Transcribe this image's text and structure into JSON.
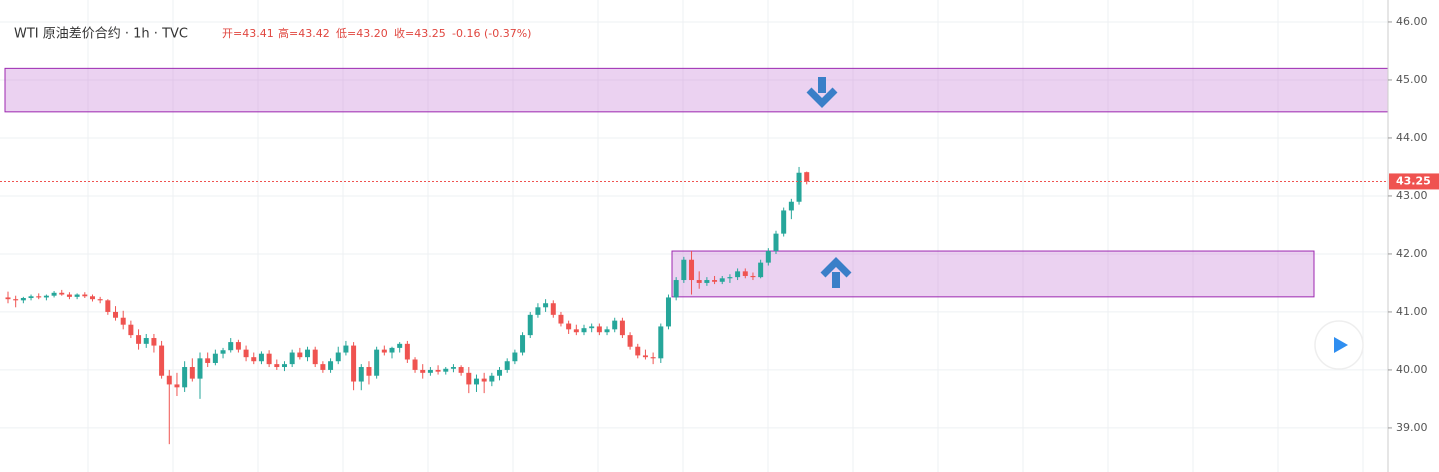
{
  "chart_data": {
    "type": "candlestick",
    "header": {
      "symbol": "WTI 原油差价合约 · 1h · TVC",
      "stats": [
        "开=43.41",
        "高=43.42",
        "低=43.20",
        "收=43.25",
        "-0.16 (-0.37%)"
      ]
    },
    "ylim": [
      38.24,
      46.12
    ],
    "yticks": [
      {
        "value": 39,
        "label": "39.00"
      },
      {
        "value": 40,
        "label": "40.00"
      },
      {
        "value": 41,
        "label": "41.00"
      },
      {
        "value": 42,
        "label": "42.00"
      },
      {
        "value": 43,
        "label": "43.00"
      },
      {
        "value": 44,
        "label": "44.00"
      },
      {
        "value": 45,
        "label": "45.00"
      },
      {
        "value": 46,
        "label": "46.00"
      }
    ],
    "grid": true,
    "up_color": "#26a69a",
    "down_color": "#ef5350",
    "last_price": {
      "value": 43.25,
      "label": "43.25"
    },
    "zones": [
      {
        "top": 45.2,
        "bottom": 44.45
      },
      {
        "top": 42.05,
        "bottom": 41.26
      }
    ],
    "zone_color": "#c77dd6",
    "ohlc": [
      [
        41.25,
        41.35,
        41.15,
        41.22
      ],
      [
        41.22,
        41.28,
        41.08,
        41.2
      ],
      [
        41.2,
        41.26,
        41.15,
        41.24
      ],
      [
        41.24,
        41.3,
        41.2,
        41.27
      ],
      [
        41.27,
        41.32,
        41.22,
        41.25
      ],
      [
        41.25,
        41.3,
        41.2,
        41.28
      ],
      [
        41.28,
        41.36,
        41.25,
        41.33
      ],
      [
        41.33,
        41.38,
        41.28,
        41.3
      ],
      [
        41.3,
        41.34,
        41.22,
        41.26
      ],
      [
        41.26,
        41.32,
        41.22,
        41.3
      ],
      [
        41.3,
        41.34,
        41.24,
        41.27
      ],
      [
        41.27,
        41.3,
        41.18,
        41.22
      ],
      [
        41.22,
        41.26,
        41.15,
        41.2
      ],
      [
        41.2,
        41.22,
        40.95,
        41.0
      ],
      [
        41.0,
        41.1,
        40.85,
        40.9
      ],
      [
        40.9,
        41.02,
        40.7,
        40.78
      ],
      [
        40.78,
        40.85,
        40.55,
        40.6
      ],
      [
        40.6,
        40.7,
        40.35,
        40.45
      ],
      [
        40.45,
        40.62,
        40.38,
        40.55
      ],
      [
        40.55,
        40.62,
        40.3,
        40.42
      ],
      [
        40.42,
        40.5,
        39.85,
        39.9
      ],
      [
        39.9,
        40.0,
        38.72,
        39.75
      ],
      [
        39.75,
        39.95,
        39.55,
        39.7
      ],
      [
        39.7,
        40.15,
        39.62,
        40.05
      ],
      [
        40.05,
        40.2,
        39.8,
        39.85
      ],
      [
        39.85,
        40.3,
        39.5,
        40.2
      ],
      [
        40.2,
        40.3,
        40.05,
        40.12
      ],
      [
        40.12,
        40.35,
        40.08,
        40.28
      ],
      [
        40.28,
        40.38,
        40.2,
        40.34
      ],
      [
        40.34,
        40.55,
        40.3,
        40.48
      ],
      [
        40.48,
        40.52,
        40.3,
        40.35
      ],
      [
        40.35,
        40.42,
        40.15,
        40.22
      ],
      [
        40.22,
        40.3,
        40.1,
        40.15
      ],
      [
        40.15,
        40.32,
        40.1,
        40.28
      ],
      [
        40.28,
        40.34,
        40.05,
        40.1
      ],
      [
        40.1,
        40.18,
        40.0,
        40.05
      ],
      [
        40.05,
        40.15,
        39.98,
        40.1
      ],
      [
        40.1,
        40.35,
        40.05,
        40.3
      ],
      [
        40.3,
        40.38,
        40.18,
        40.22
      ],
      [
        40.22,
        40.4,
        40.15,
        40.35
      ],
      [
        40.35,
        40.4,
        40.05,
        40.1
      ],
      [
        40.1,
        40.15,
        39.95,
        40.0
      ],
      [
        40.0,
        40.2,
        39.95,
        40.15
      ],
      [
        40.15,
        40.4,
        40.1,
        40.3
      ],
      [
        40.3,
        40.5,
        40.25,
        40.42
      ],
      [
        40.42,
        40.48,
        39.65,
        39.8
      ],
      [
        39.8,
        40.1,
        39.65,
        40.05
      ],
      [
        40.05,
        40.15,
        39.75,
        39.9
      ],
      [
        39.9,
        40.4,
        39.85,
        40.35
      ],
      [
        40.35,
        40.42,
        40.25,
        40.3
      ],
      [
        40.3,
        40.4,
        40.2,
        40.38
      ],
      [
        40.38,
        40.48,
        40.3,
        40.45
      ],
      [
        40.45,
        40.5,
        40.12,
        40.18
      ],
      [
        40.18,
        40.22,
        39.95,
        40.0
      ],
      [
        40.0,
        40.1,
        39.85,
        39.95
      ],
      [
        39.95,
        40.05,
        39.9,
        40.0
      ],
      [
        40.0,
        40.08,
        39.92,
        39.97
      ],
      [
        39.97,
        40.05,
        39.92,
        40.02
      ],
      [
        40.02,
        40.1,
        39.96,
        40.05
      ],
      [
        40.05,
        40.08,
        39.9,
        39.95
      ],
      [
        39.95,
        40.05,
        39.6,
        39.75
      ],
      [
        39.75,
        39.92,
        39.62,
        39.85
      ],
      [
        39.85,
        39.95,
        39.6,
        39.8
      ],
      [
        39.8,
        39.95,
        39.72,
        39.9
      ],
      [
        39.9,
        40.05,
        39.82,
        40.0
      ],
      [
        40.0,
        40.2,
        39.95,
        40.15
      ],
      [
        40.15,
        40.35,
        40.1,
        40.3
      ],
      [
        40.3,
        40.65,
        40.25,
        40.6
      ],
      [
        40.6,
        41.0,
        40.55,
        40.95
      ],
      [
        40.95,
        41.15,
        40.9,
        41.08
      ],
      [
        41.08,
        41.22,
        41.0,
        41.15
      ],
      [
        41.15,
        41.2,
        40.9,
        40.95
      ],
      [
        40.95,
        41.0,
        40.75,
        40.8
      ],
      [
        40.8,
        40.85,
        40.62,
        40.7
      ],
      [
        40.7,
        40.78,
        40.6,
        40.65
      ],
      [
        40.65,
        40.78,
        40.6,
        40.72
      ],
      [
        40.72,
        40.8,
        40.65,
        40.75
      ],
      [
        40.75,
        40.8,
        40.6,
        40.65
      ],
      [
        40.65,
        40.75,
        40.6,
        40.7
      ],
      [
        40.7,
        40.9,
        40.65,
        40.85
      ],
      [
        40.85,
        40.9,
        40.55,
        40.6
      ],
      [
        40.6,
        40.65,
        40.35,
        40.4
      ],
      [
        40.4,
        40.45,
        40.2,
        40.25
      ],
      [
        40.25,
        40.35,
        40.18,
        40.22
      ],
      [
        40.22,
        40.3,
        40.1,
        40.2
      ],
      [
        40.2,
        40.8,
        40.12,
        40.75
      ],
      [
        40.75,
        41.3,
        40.7,
        41.25
      ],
      [
        41.25,
        41.6,
        41.2,
        41.55
      ],
      [
        41.55,
        41.95,
        41.5,
        41.9
      ],
      [
        41.9,
        42.05,
        41.3,
        41.55
      ],
      [
        41.55,
        41.7,
        41.4,
        41.5
      ],
      [
        41.5,
        41.6,
        41.45,
        41.55
      ],
      [
        41.55,
        41.62,
        41.48,
        41.52
      ],
      [
        41.52,
        41.62,
        41.48,
        41.58
      ],
      [
        41.58,
        41.65,
        41.5,
        41.6
      ],
      [
        41.6,
        41.75,
        41.55,
        41.7
      ],
      [
        41.7,
        41.75,
        41.58,
        41.62
      ],
      [
        41.62,
        41.68,
        41.55,
        41.6
      ],
      [
        41.6,
        41.9,
        41.58,
        41.85
      ],
      [
        41.85,
        42.1,
        41.8,
        42.05
      ],
      [
        42.05,
        42.4,
        42.0,
        42.35
      ],
      [
        42.35,
        42.8,
        42.3,
        42.75
      ],
      [
        42.75,
        42.95,
        42.6,
        42.9
      ],
      [
        42.9,
        43.5,
        42.85,
        43.4
      ],
      [
        43.41,
        43.42,
        43.2,
        43.25
      ]
    ]
  }
}
